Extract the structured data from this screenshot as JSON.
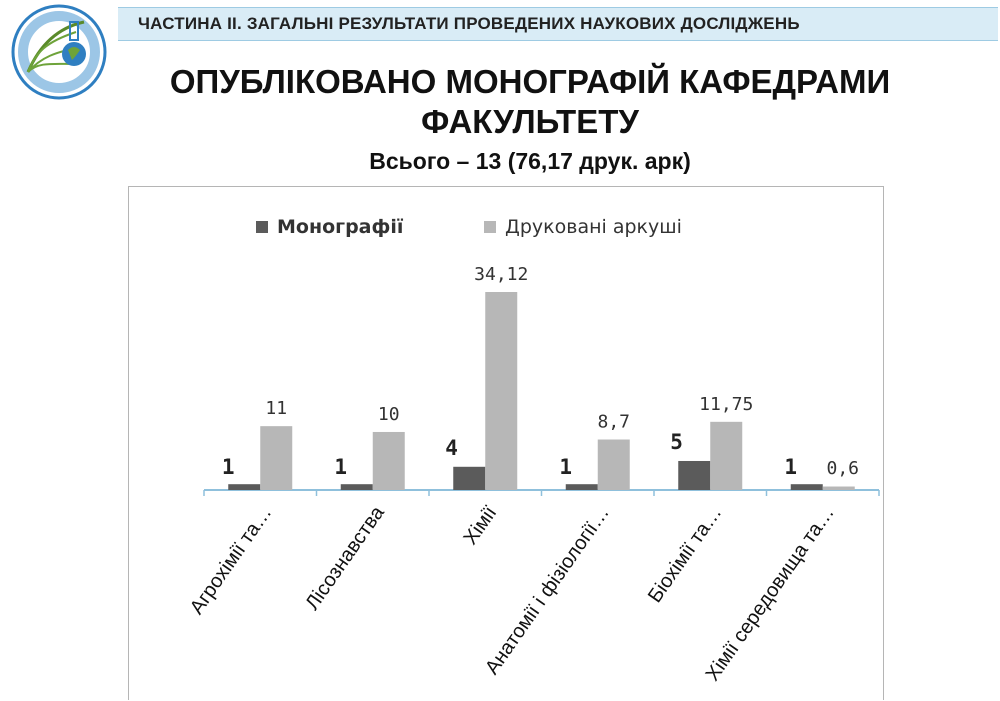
{
  "header": {
    "banner": "ЧАСТИНА ІІ. ЗАГАЛЬНІ РЕЗУЛЬТАТИ ПРОВЕДЕНИХ НАУКОВИХ ДОСЛІДЖЕНЬ",
    "title_line1": "ОПУБЛІКОВАНО МОНОГРАФІЙ КАФЕДРАМИ",
    "title_line2": "ФАКУЛЬТЕТУ",
    "subtitle": "Всього – 13 (76,17 друк. арк)"
  },
  "chart_data": {
    "type": "bar",
    "categories": [
      "Агрохімії та…",
      "Лісознавства",
      "Хімії",
      "Анатомії і фізіології…",
      "Біохімії та…",
      "Хімії середовища та…"
    ],
    "series": [
      {
        "name": "Монографії",
        "values": [
          1,
          1,
          4,
          1,
          5,
          1
        ],
        "labels": [
          "1",
          "1",
          "4",
          "1",
          "5",
          "1"
        ],
        "color": "#5b5b5b"
      },
      {
        "name": "Друковані аркуші",
        "values": [
          11,
          10,
          34.12,
          8.7,
          11.75,
          0.6
        ],
        "labels": [
          "11",
          "10",
          "34,12",
          "8,7",
          "11,75",
          "0,6"
        ],
        "color": "#b7b7b7"
      }
    ],
    "legend_position": "top",
    "grid": false,
    "ylim": [
      0,
      40
    ],
    "colors": {
      "axis": "#8fc0dc",
      "frame": "#b5b5b5"
    }
  }
}
